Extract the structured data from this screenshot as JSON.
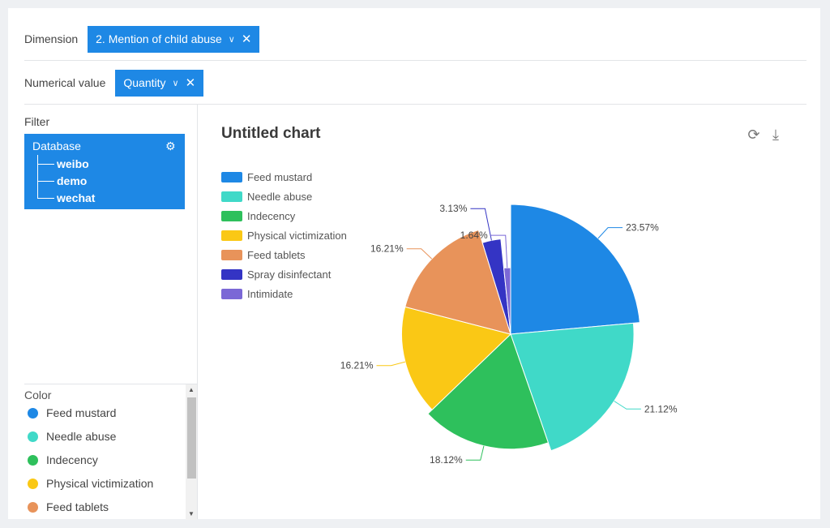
{
  "dimension": {
    "label": "Dimension",
    "chip": "2. Mention of child abuse"
  },
  "numerical": {
    "label": "Numerical value",
    "chip": "Quantity"
  },
  "filter": {
    "label": "Filter",
    "root": "Database",
    "children": [
      "weibo",
      "demo",
      "wechat"
    ]
  },
  "color_panel": {
    "title": "Color",
    "items": [
      {
        "label": "Feed mustard",
        "color": "#1e88e5"
      },
      {
        "label": "Needle abuse",
        "color": "#40d9c8"
      },
      {
        "label": "Indecency",
        "color": "#2ec05c"
      },
      {
        "label": "Physical victimization",
        "color": "#fac815"
      },
      {
        "label": "Feed tablets",
        "color": "#e8935a"
      }
    ]
  },
  "chart_data": {
    "type": "pie",
    "title": "Untitled chart",
    "legend_position": "top-left",
    "variant": "rose",
    "slices": [
      {
        "label": "Feed mustard",
        "value": 23.57,
        "color": "#1e88e5",
        "text": "23.57%"
      },
      {
        "label": "Needle abuse",
        "value": 21.12,
        "color": "#40d9c8",
        "text": "21.12%"
      },
      {
        "label": "Indecency",
        "value": 18.12,
        "color": "#2ec05c",
        "text": "18.12%"
      },
      {
        "label": "Physical victimization",
        "value": 16.21,
        "color": "#fac815",
        "text": "16.21%"
      },
      {
        "label": "Feed tablets",
        "value": 16.21,
        "color": "#e8935a",
        "text": "16.21%"
      },
      {
        "label": "Spray disinfectant",
        "value": 3.13,
        "color": "#3434c4",
        "text": "3.13%"
      },
      {
        "label": "Intimidate",
        "value": 1.64,
        "color": "#7b68d6",
        "text": "1.64%"
      }
    ]
  }
}
